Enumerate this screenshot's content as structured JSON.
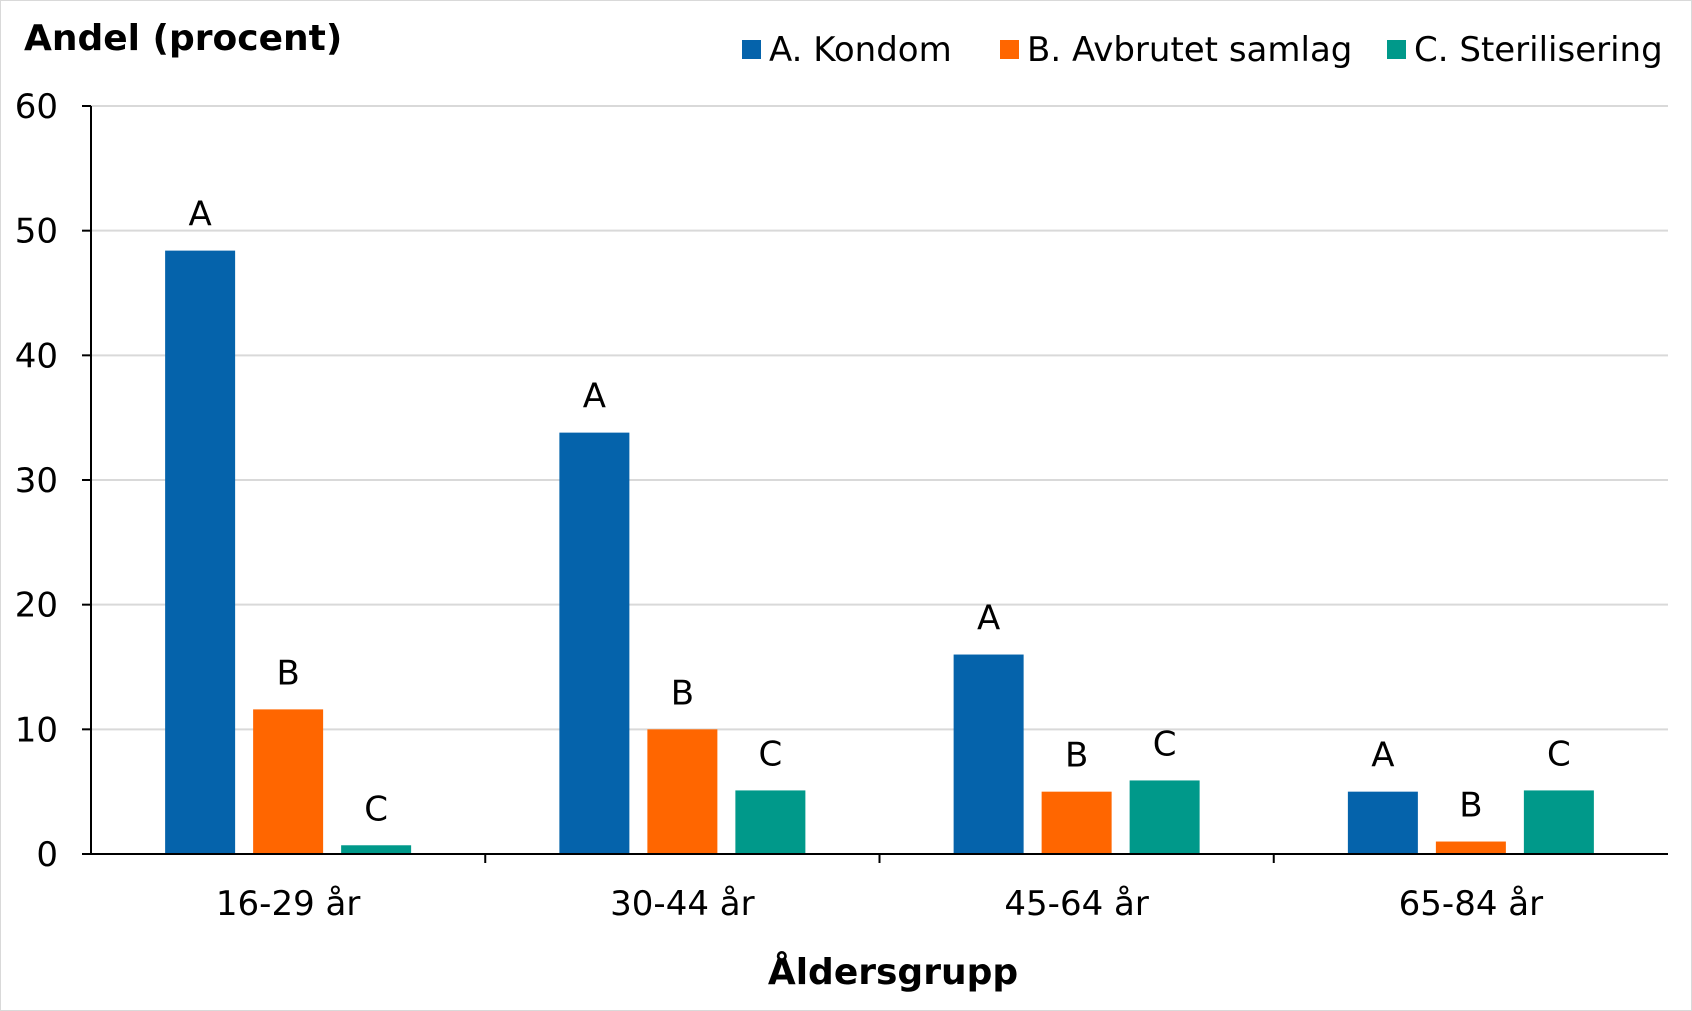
{
  "chart_data": {
    "type": "bar",
    "ylabel": "Andel (procent)",
    "xlabel": "Åldersgrupp",
    "categories": [
      "16-29 år",
      "30-44 år",
      "45-64 år",
      "65-84 år"
    ],
    "ylim": [
      0,
      60
    ],
    "yticks": [
      0,
      10,
      20,
      30,
      40,
      50,
      60
    ],
    "grid": true,
    "legend_position": "top-right",
    "series": [
      {
        "name": "A. Kondom",
        "marker": "A",
        "color": "#0563ab",
        "values": [
          48.4,
          33.8,
          16.0,
          5.0
        ]
      },
      {
        "name": "B. Avbrutet samlag",
        "marker": "B",
        "color": "#ff6600",
        "values": [
          11.6,
          10.0,
          5.0,
          1.0
        ]
      },
      {
        "name": "C. Sterilisering",
        "marker": "C",
        "color": "#00998a",
        "values": [
          0.7,
          5.1,
          5.9,
          5.1
        ]
      }
    ]
  }
}
